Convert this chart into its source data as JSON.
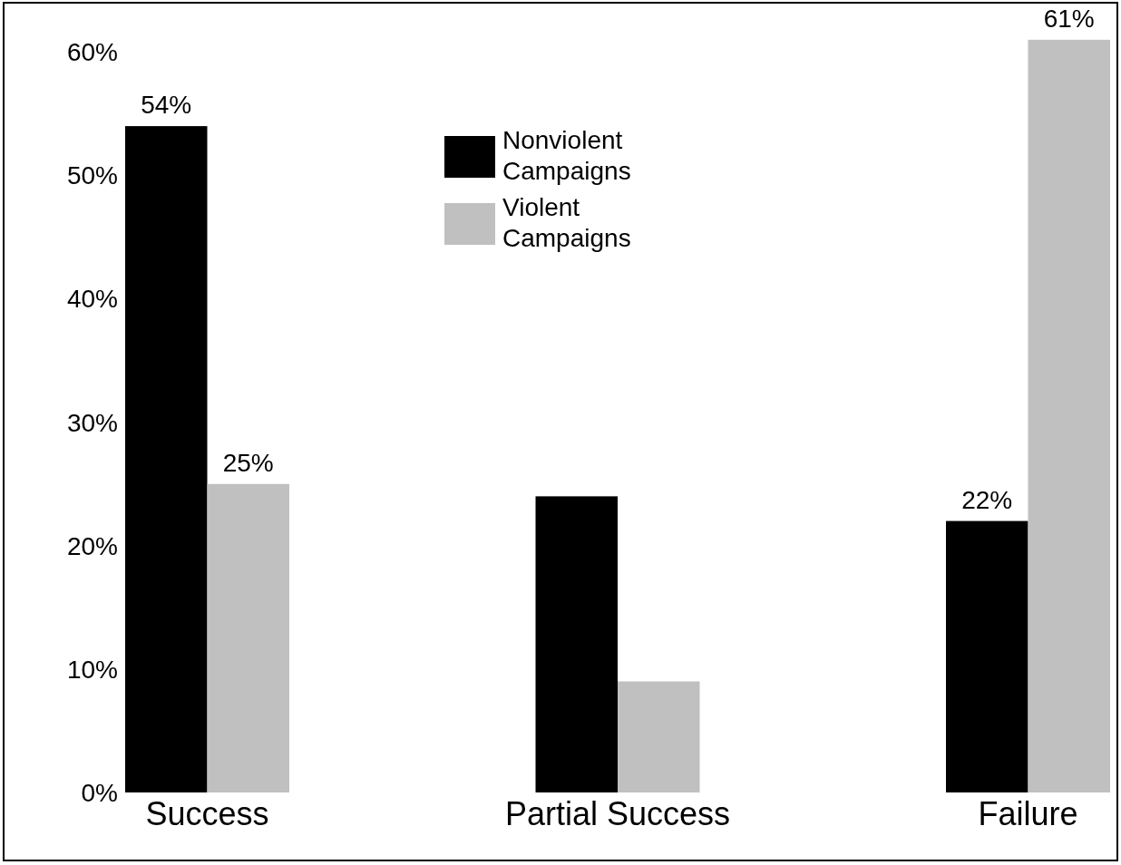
{
  "chart_data": {
    "type": "bar",
    "categories": [
      "Success",
      "Partial Success",
      "Failure"
    ],
    "series": [
      {
        "name": "Nonviolent Campaigns",
        "color": "#000000",
        "values": [
          54,
          24,
          22
        ],
        "value_labels": [
          "54%",
          null,
          "22%"
        ]
      },
      {
        "name": "Violent Campaigns",
        "color": "#c0c0c0",
        "values": [
          25,
          9,
          61
        ],
        "value_labels": [
          "25%",
          null,
          "61%"
        ]
      }
    ],
    "ylim": [
      0,
      64
    ],
    "yticks": [
      {
        "value": 0,
        "label": "0%"
      },
      {
        "value": 10,
        "label": "10%"
      },
      {
        "value": 20,
        "label": "20%"
      },
      {
        "value": 30,
        "label": "30%"
      },
      {
        "value": 40,
        "label": "40%"
      },
      {
        "value": 50,
        "label": "50%"
      },
      {
        "value": 60,
        "label": "60%"
      }
    ],
    "grid": false,
    "legend": "top"
  }
}
